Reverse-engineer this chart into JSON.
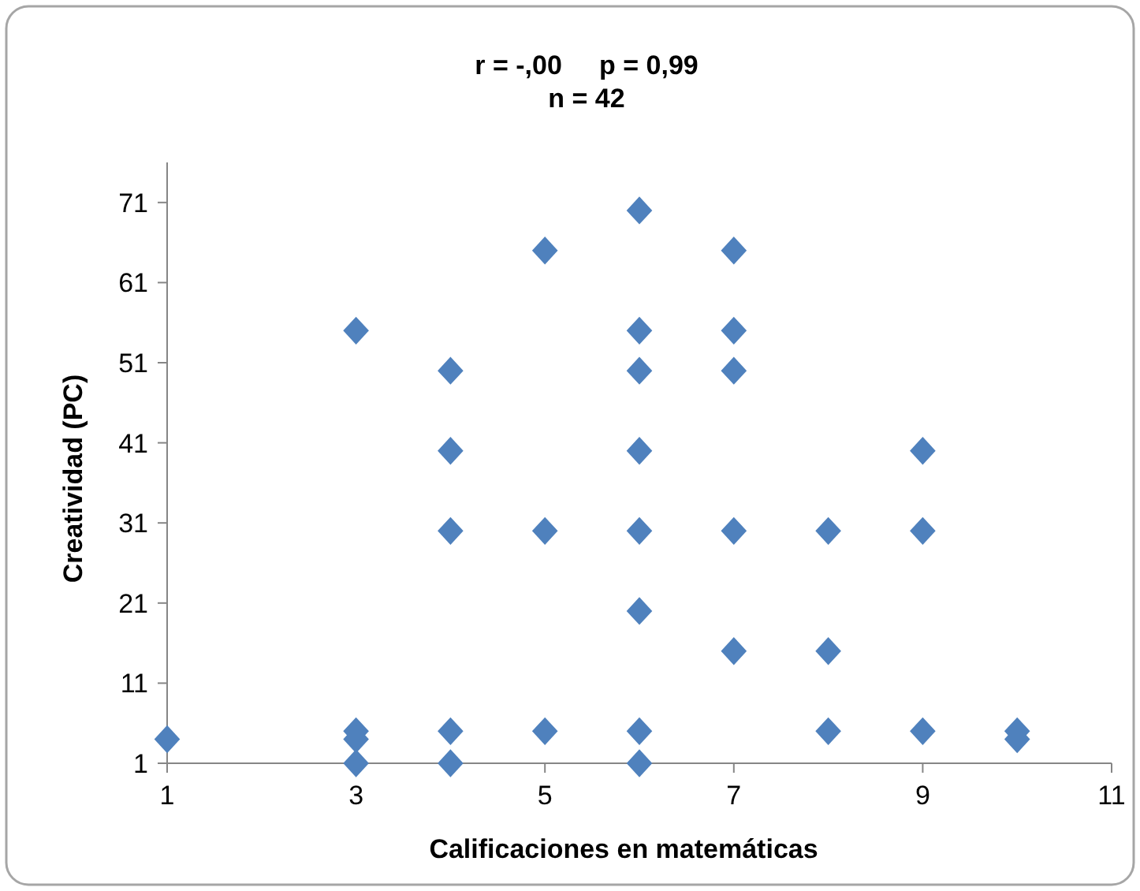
{
  "chart_data": {
    "type": "scatter",
    "title": "r = -,00     p = 0,99",
    "subtitle": "n = 42",
    "xlabel": "Calificaciones en matemáticas",
    "ylabel": "Creatividad (PC)",
    "x": [
      1,
      3,
      3,
      3,
      3,
      4,
      4,
      4,
      4,
      4,
      5,
      5,
      5,
      6,
      6,
      6,
      6,
      6,
      6,
      6,
      6,
      7,
      7,
      7,
      7,
      7,
      8,
      8,
      8,
      9,
      9,
      9,
      10,
      10
    ],
    "series": [
      {
        "color": "#4f81bd",
        "values": [
          4,
          55,
          5,
          4,
          1,
          50,
          40,
          30,
          5,
          1,
          65,
          30,
          5,
          70,
          55,
          50,
          40,
          30,
          20,
          5,
          1,
          65,
          55,
          50,
          30,
          15,
          30,
          15,
          5,
          40,
          30,
          5,
          5,
          4
        ]
      }
    ],
    "xlim": [
      1,
      11
    ],
    "xticks": [
      1,
      3,
      5,
      7,
      9,
      11
    ],
    "ylim": [
      1,
      76
    ],
    "yticks": [
      1,
      11,
      21,
      31,
      41,
      51,
      61,
      71
    ],
    "marker": "diamond"
  }
}
